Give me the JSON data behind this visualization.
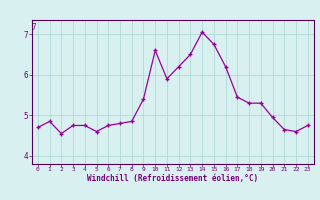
{
  "x": [
    0,
    1,
    2,
    3,
    4,
    5,
    6,
    7,
    8,
    9,
    10,
    11,
    12,
    13,
    14,
    15,
    16,
    17,
    18,
    19,
    20,
    21,
    22,
    23
  ],
  "y": [
    4.7,
    4.85,
    4.55,
    4.75,
    4.75,
    4.6,
    4.75,
    4.8,
    4.85,
    5.4,
    6.6,
    5.9,
    6.2,
    6.5,
    7.05,
    6.75,
    6.2,
    5.45,
    5.3,
    5.3,
    4.95,
    4.65,
    4.6,
    4.75
  ],
  "line_color": "#990099",
  "marker": "+",
  "marker_color": "#990099",
  "bg_color": "#d8f0f0",
  "grid_color": "#aad4d4",
  "axis_label_color": "#770077",
  "tick_color": "#770077",
  "spine_color": "#550055",
  "xlabel": "Windchill (Refroidissement éolien,°C)",
  "xlim": [
    -0.5,
    23.5
  ],
  "ylim": [
    3.8,
    7.35
  ],
  "yticks": [
    4,
    5,
    6,
    7
  ],
  "xticks": [
    0,
    1,
    2,
    3,
    4,
    5,
    6,
    7,
    8,
    9,
    10,
    11,
    12,
    13,
    14,
    15,
    16,
    17,
    18,
    19,
    20,
    21,
    22,
    23
  ],
  "top_label": "7"
}
